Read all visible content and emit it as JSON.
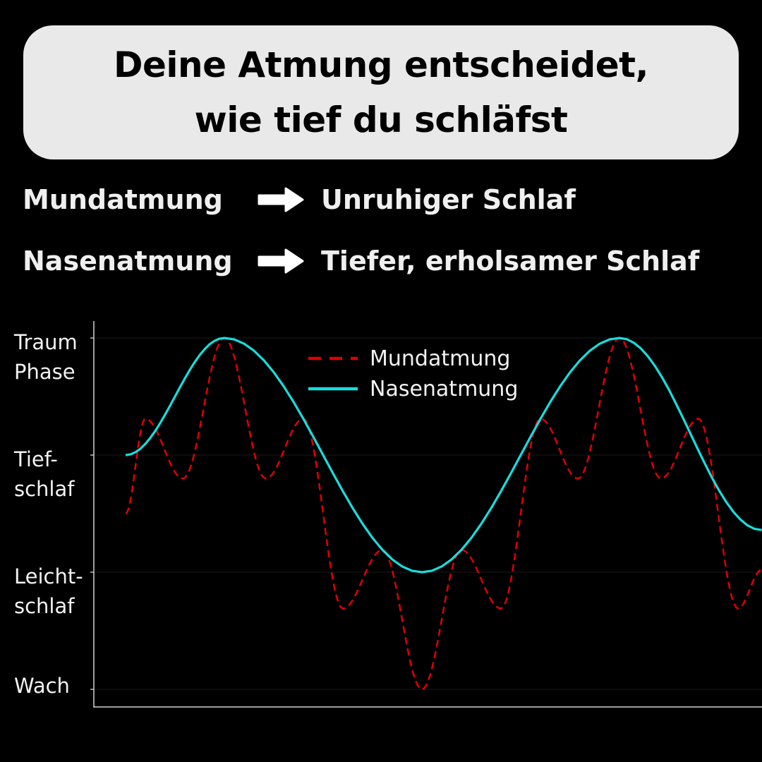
{
  "title": {
    "line1": "Deine Atmung entscheidet,",
    "line2": "wie tief du schläfst"
  },
  "comparison": [
    {
      "left": "Mundatmung",
      "icon": "arrow-right-icon",
      "right": "Unruhiger Schlaf"
    },
    {
      "left": "Nasenatmung",
      "icon": "arrow-right-icon",
      "right": "Tiefer, erholsamer Schlaf"
    }
  ],
  "colors": {
    "background": "#000000",
    "title_box": "#e9e9e9",
    "mund": "#e00000",
    "nasen": "#16dede",
    "text": "#f2f2f2"
  },
  "chart_data": {
    "type": "line",
    "title": "",
    "xlabel": "",
    "ylabel": "",
    "ylim": [
      0,
      3
    ],
    "xlim": [
      0,
      161
    ],
    "grid": true,
    "legend_placement": "top-center",
    "y_ticks": [
      {
        "value": 3,
        "lines": [
          "Traum",
          "Phase"
        ]
      },
      {
        "value": 2,
        "lines": [
          "Tief-",
          "schlaf"
        ]
      },
      {
        "value": 1,
        "lines": [
          "Leicht-",
          "schlaf"
        ]
      },
      {
        "value": 0,
        "lines": [
          "Wach"
        ]
      }
    ],
    "series": [
      {
        "name": "Mundatmung",
        "style": "dashed",
        "color": "#e00000",
        "x": [
          0,
          5,
          14.5,
          25,
          35.5,
          45,
          55,
          65,
          75,
          85,
          95,
          105,
          114.5,
          125,
          135.5,
          145,
          155,
          161
        ],
        "y": [
          1.5,
          2.31,
          1.8,
          3,
          1.8,
          2.31,
          0.69,
          1.19,
          0,
          1.19,
          0.69,
          2.31,
          1.8,
          3,
          1.8,
          2.31,
          0.69,
          1.02
        ]
      },
      {
        "name": "Nasenatmung",
        "style": "solid",
        "color": "#16dede",
        "x": [
          0,
          25,
          75,
          125,
          161
        ],
        "y": [
          2,
          3,
          1,
          3,
          1.36
        ]
      }
    ]
  }
}
